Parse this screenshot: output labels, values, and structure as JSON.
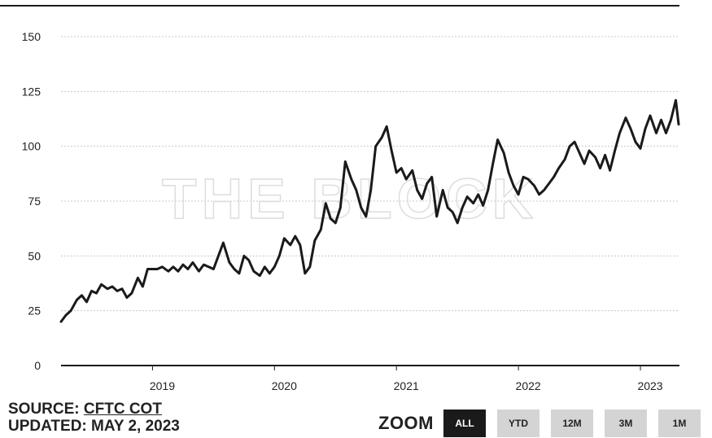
{
  "chart_data": {
    "type": "line",
    "title": "",
    "xlabel": "",
    "ylabel": "",
    "ylim": [
      0,
      150
    ],
    "y_ticks": [
      0,
      25,
      50,
      75,
      100,
      125,
      150
    ],
    "x_ticks": [
      "2019",
      "2020",
      "2021",
      "2022",
      "2023"
    ],
    "x_tick_values": [
      2019.0,
      2020.0,
      2021.0,
      2022.0,
      2023.0
    ],
    "xlim": [
      2018.25,
      2023.32
    ],
    "grid": true,
    "watermark": "THE BLOCK",
    "line_color": "#1a1a1a",
    "series": [
      {
        "points": [
          [
            2018.25,
            20
          ],
          [
            2018.29,
            23
          ],
          [
            2018.33,
            25
          ],
          [
            2018.38,
            30
          ],
          [
            2018.42,
            32
          ],
          [
            2018.46,
            29
          ],
          [
            2018.5,
            34
          ],
          [
            2018.54,
            33
          ],
          [
            2018.58,
            37
          ],
          [
            2018.63,
            35
          ],
          [
            2018.67,
            36
          ],
          [
            2018.71,
            34
          ],
          [
            2018.75,
            35
          ],
          [
            2018.79,
            31
          ],
          [
            2018.83,
            33
          ],
          [
            2018.88,
            40
          ],
          [
            2018.92,
            36
          ],
          [
            2018.96,
            44
          ],
          [
            2019.0,
            44
          ],
          [
            2019.04,
            44
          ],
          [
            2019.08,
            45
          ],
          [
            2019.13,
            43
          ],
          [
            2019.17,
            45
          ],
          [
            2019.21,
            43
          ],
          [
            2019.25,
            46
          ],
          [
            2019.29,
            44
          ],
          [
            2019.33,
            47
          ],
          [
            2019.38,
            43
          ],
          [
            2019.42,
            46
          ],
          [
            2019.46,
            45
          ],
          [
            2019.5,
            44
          ],
          [
            2019.54,
            50
          ],
          [
            2019.58,
            56
          ],
          [
            2019.63,
            47
          ],
          [
            2019.67,
            44
          ],
          [
            2019.71,
            42
          ],
          [
            2019.75,
            50
          ],
          [
            2019.79,
            48
          ],
          [
            2019.83,
            43
          ],
          [
            2019.88,
            41
          ],
          [
            2019.92,
            45
          ],
          [
            2019.96,
            42
          ],
          [
            2020.0,
            45
          ],
          [
            2020.04,
            50
          ],
          [
            2020.08,
            58
          ],
          [
            2020.13,
            55
          ],
          [
            2020.17,
            59
          ],
          [
            2020.21,
            55
          ],
          [
            2020.25,
            42
          ],
          [
            2020.29,
            45
          ],
          [
            2020.33,
            57
          ],
          [
            2020.38,
            62
          ],
          [
            2020.42,
            74
          ],
          [
            2020.46,
            67
          ],
          [
            2020.5,
            65
          ],
          [
            2020.54,
            72
          ],
          [
            2020.58,
            93
          ],
          [
            2020.63,
            85
          ],
          [
            2020.67,
            80
          ],
          [
            2020.71,
            72
          ],
          [
            2020.75,
            68
          ],
          [
            2020.79,
            80
          ],
          [
            2020.83,
            100
          ],
          [
            2020.88,
            104
          ],
          [
            2020.92,
            109
          ],
          [
            2020.96,
            98
          ],
          [
            2021.0,
            88
          ],
          [
            2021.04,
            90
          ],
          [
            2021.08,
            85
          ],
          [
            2021.13,
            89
          ],
          [
            2021.17,
            80
          ],
          [
            2021.21,
            76
          ],
          [
            2021.25,
            83
          ],
          [
            2021.29,
            86
          ],
          [
            2021.33,
            68
          ],
          [
            2021.38,
            80
          ],
          [
            2021.42,
            72
          ],
          [
            2021.46,
            70
          ],
          [
            2021.5,
            65
          ],
          [
            2021.54,
            72
          ],
          [
            2021.58,
            77
          ],
          [
            2021.63,
            74
          ],
          [
            2021.67,
            78
          ],
          [
            2021.71,
            73
          ],
          [
            2021.75,
            80
          ],
          [
            2021.79,
            92
          ],
          [
            2021.83,
            103
          ],
          [
            2021.88,
            97
          ],
          [
            2021.92,
            88
          ],
          [
            2021.96,
            82
          ],
          [
            2022.0,
            78
          ],
          [
            2022.04,
            86
          ],
          [
            2022.08,
            85
          ],
          [
            2022.13,
            82
          ],
          [
            2022.17,
            78
          ],
          [
            2022.21,
            80
          ],
          [
            2022.25,
            83
          ],
          [
            2022.29,
            86
          ],
          [
            2022.33,
            90
          ],
          [
            2022.38,
            94
          ],
          [
            2022.42,
            100
          ],
          [
            2022.46,
            102
          ],
          [
            2022.5,
            97
          ],
          [
            2022.54,
            92
          ],
          [
            2022.58,
            98
          ],
          [
            2022.63,
            95
          ],
          [
            2022.67,
            90
          ],
          [
            2022.71,
            96
          ],
          [
            2022.75,
            89
          ],
          [
            2022.79,
            98
          ],
          [
            2022.83,
            106
          ],
          [
            2022.88,
            113
          ],
          [
            2022.92,
            108
          ],
          [
            2022.96,
            102
          ],
          [
            2023.0,
            99
          ],
          [
            2023.04,
            108
          ],
          [
            2023.08,
            114
          ],
          [
            2023.13,
            106
          ],
          [
            2023.17,
            112
          ],
          [
            2023.21,
            106
          ],
          [
            2023.25,
            112
          ],
          [
            2023.29,
            121
          ],
          [
            2023.32,
            110
          ]
        ]
      }
    ]
  },
  "footer": {
    "source_label": "SOURCE: ",
    "source_link": "CFTC COT",
    "updated_label": "UPDATED: MAY 2, 2023"
  },
  "zoom": {
    "label": "ZOOM",
    "buttons": [
      "ALL",
      "YTD",
      "12M",
      "3M",
      "1M"
    ],
    "active": "ALL"
  }
}
